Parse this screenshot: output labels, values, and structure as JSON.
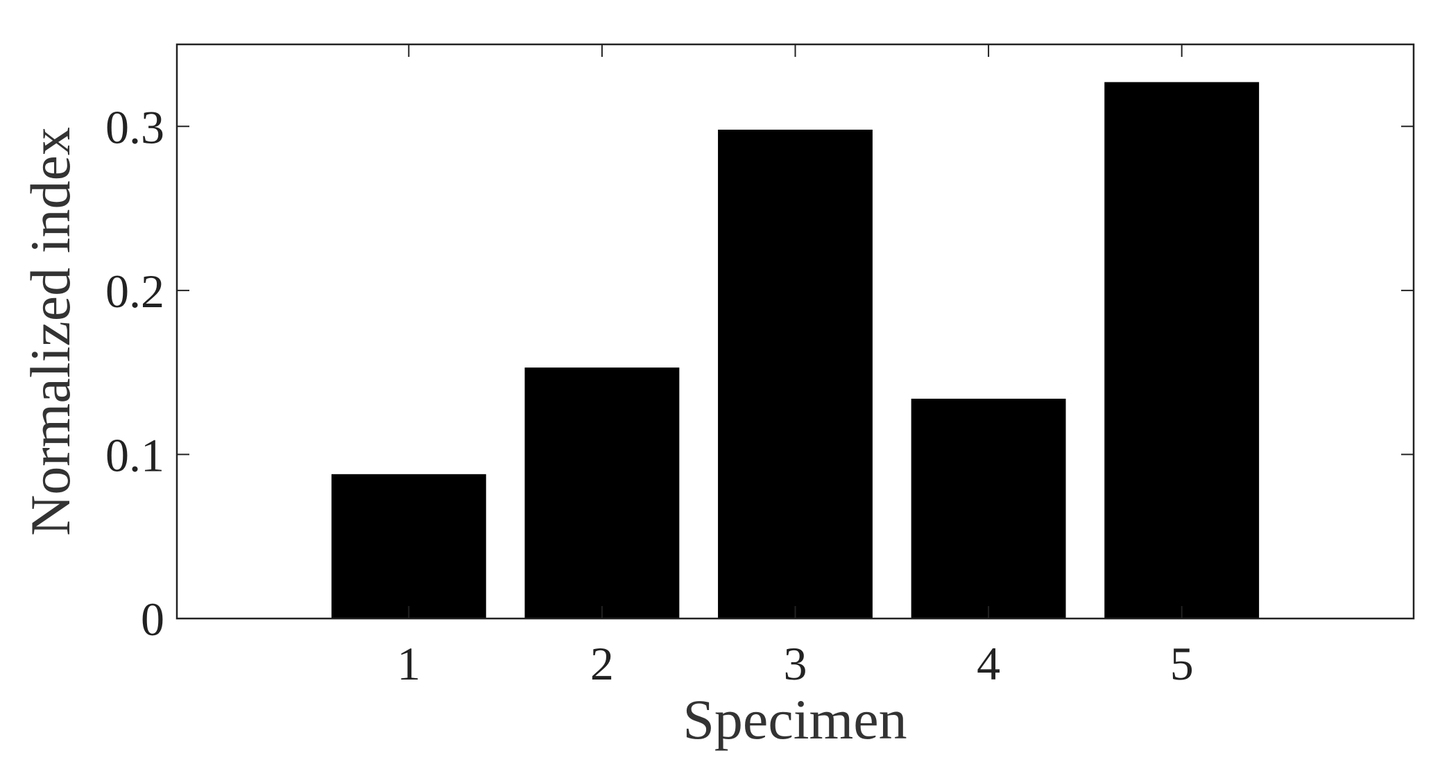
{
  "chart_data": {
    "type": "bar",
    "x_label": "Specimen",
    "y_label": "Normalized index",
    "x": [
      1,
      2,
      3,
      4,
      5
    ],
    "values": [
      0.088,
      0.153,
      0.298,
      0.134,
      0.327
    ],
    "color": "#000000",
    "xlim": [
      -0.2,
      6.2
    ],
    "xticks": [
      1,
      2,
      3,
      4,
      5
    ],
    "ylim": [
      0,
      0.35
    ],
    "yticks": [
      0,
      0.1,
      0.2,
      0.3
    ],
    "grid": false
  }
}
